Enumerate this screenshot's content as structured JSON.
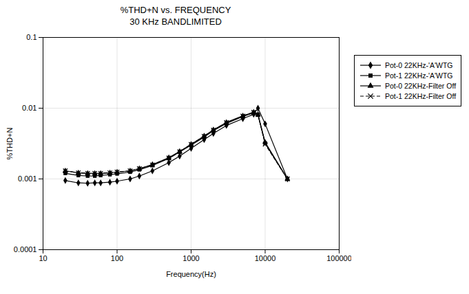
{
  "chart_data": {
    "type": "line",
    "title": "%THD+N vs. FREQUENCY",
    "subtitle": "30 KHz BANDLIMITED",
    "xlabel": "Frequency(Hz)",
    "ylabel": "%THD+N",
    "log": true,
    "grid": true,
    "legend": "right",
    "xlim": [
      10,
      100000
    ],
    "ylim": [
      0.0001,
      0.1
    ],
    "xticks": [
      10,
      100,
      1000,
      10000,
      100000
    ],
    "yticks": [
      0.0001,
      0.001,
      0.01,
      0.1
    ],
    "x": [
      20,
      30,
      40,
      50,
      60,
      80,
      100,
      150,
      200,
      300,
      500,
      700,
      1000,
      1500,
      2000,
      3000,
      5000,
      7000,
      8000,
      10000,
      20000
    ],
    "series": [
      {
        "name": "Pot-0 22KHz-'A'WTG",
        "color": "#000000",
        "marker": "diamond",
        "line_style": "solid",
        "values": [
          0.00095,
          0.00088,
          0.00087,
          0.00088,
          0.00088,
          0.0009,
          0.00093,
          0.001,
          0.0011,
          0.0013,
          0.0017,
          0.0021,
          0.0027,
          0.0036,
          0.0044,
          0.0057,
          0.0071,
          0.0082,
          0.01,
          0.006,
          0.001
        ]
      },
      {
        "name": "Pot-1 22KHz-'A'WTG",
        "color": "#000000",
        "marker": "square",
        "line_style": "solid",
        "values": [
          0.0012,
          0.00112,
          0.0011,
          0.0011,
          0.00112,
          0.00115,
          0.00118,
          0.00125,
          0.00135,
          0.00155,
          0.00195,
          0.0024,
          0.003,
          0.0039,
          0.0048,
          0.0061,
          0.0076,
          0.0086,
          0.008,
          0.0032,
          0.001
        ]
      },
      {
        "name": "Pot-0 22KHz-Filter Off",
        "color": "#000000",
        "marker": "triangle",
        "line_style": "solid",
        "values": [
          0.0013,
          0.00122,
          0.0012,
          0.0012,
          0.0012,
          0.00122,
          0.00125,
          0.0013,
          0.0014,
          0.0016,
          0.002,
          0.00245,
          0.0031,
          0.00405,
          0.00495,
          0.0063,
          0.0078,
          0.0088,
          0.0082,
          0.0033,
          0.001
        ]
      },
      {
        "name": "Pot-1 22KHz-Filter Off",
        "color": "#000000",
        "marker": "x",
        "line_style": "dashed",
        "values": [
          0.0013,
          0.00122,
          0.0012,
          0.0012,
          0.0012,
          0.00122,
          0.00125,
          0.0013,
          0.0014,
          0.00158,
          0.00198,
          0.00243,
          0.00308,
          0.004,
          0.0049,
          0.00625,
          0.00775,
          0.00875,
          0.0081,
          0.0031,
          0.001
        ]
      }
    ]
  }
}
